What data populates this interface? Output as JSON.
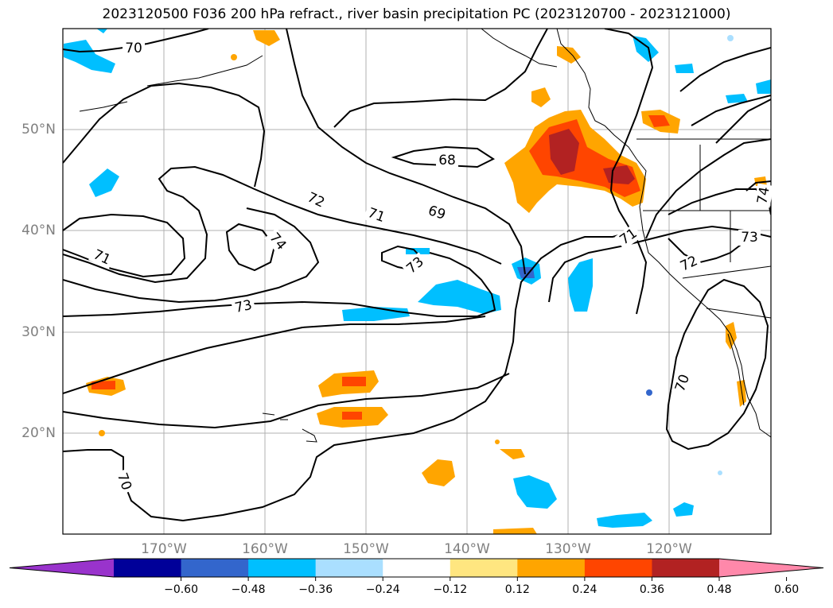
{
  "title": "2023120500 F036 200 hPa refract., river basin precipitation PC (2023120700 - 2023121000)",
  "map": {
    "lat_labels": [
      "50°N",
      "40°N",
      "30°N",
      "20°N"
    ],
    "lon_labels": [
      "170°W",
      "160°W",
      "150°W",
      "140°W",
      "130°W",
      "120°W"
    ],
    "contour_labels": [
      "70",
      "68",
      "72",
      "71",
      "69",
      "74",
      "71",
      "73",
      "73",
      "72",
      "71",
      "73",
      "74",
      "70",
      "70"
    ]
  },
  "colorbar": {
    "colors": [
      "#9933cc",
      "#000099",
      "#3366cc",
      "#00bfff",
      "#aadfff",
      "#ffffff",
      "#ffe680",
      "#ffa500",
      "#ff4500",
      "#b22222",
      "#ff88aa"
    ],
    "tick_labels": [
      "−0.60",
      "−0.48",
      "−0.36",
      "−0.24",
      "−0.12",
      "0.12",
      "0.24",
      "0.36",
      "0.48",
      "0.60"
    ]
  }
}
